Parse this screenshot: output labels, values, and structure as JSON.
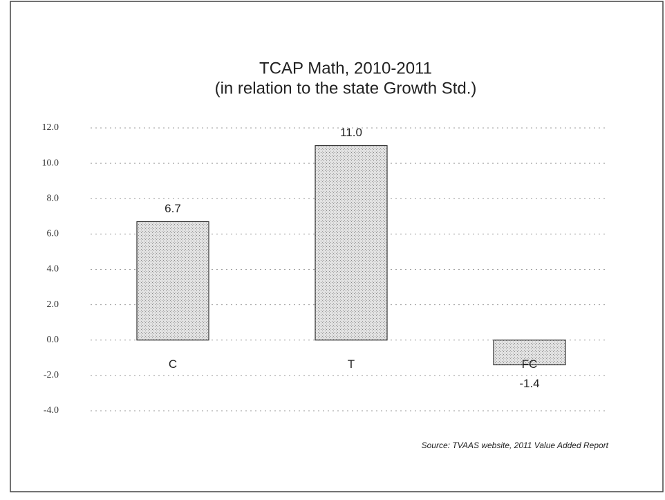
{
  "chart_data": {
    "type": "bar",
    "title": "TCAP Math, 2010-2011",
    "subtitle": "(in relation to the state Growth Std.)",
    "categories": [
      "C",
      "T",
      "FC"
    ],
    "values": [
      6.7,
      11.0,
      -1.4
    ],
    "value_labels": [
      "6.7",
      "11.0",
      "-1.4"
    ],
    "color": "#d9d9d9",
    "ylim": [
      -4,
      12
    ],
    "yticks": [
      {
        "value": -4,
        "label": "-4.0"
      },
      {
        "value": -2,
        "label": "-2.0"
      },
      {
        "value": 0,
        "label": "0.0"
      },
      {
        "value": 2,
        "label": "2.0"
      },
      {
        "value": 4,
        "label": "4.0"
      },
      {
        "value": 6,
        "label": "6.0"
      },
      {
        "value": 8,
        "label": "8.0"
      },
      {
        "value": 10,
        "label": "10.0"
      },
      {
        "value": 12,
        "label": "12.0"
      }
    ],
    "grid": true,
    "source": "Source: TVAAS website, 2011 Value Added Report"
  }
}
